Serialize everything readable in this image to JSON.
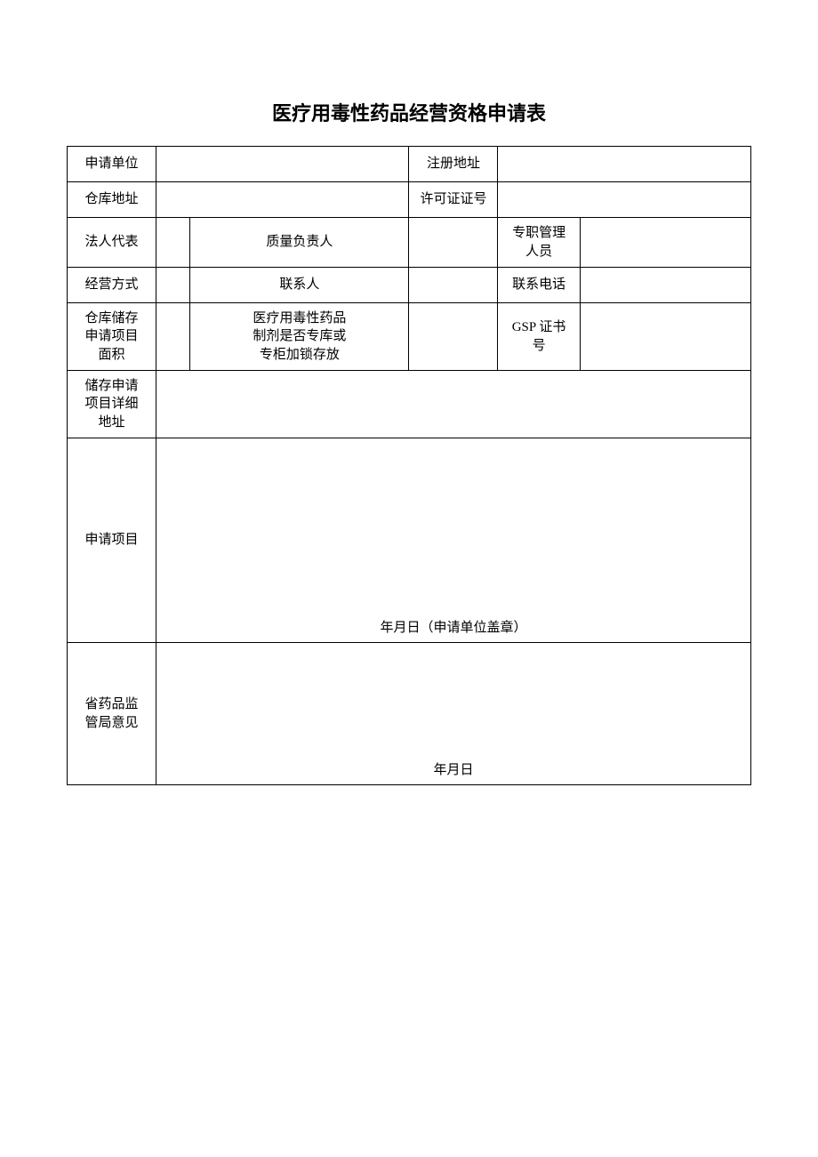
{
  "title": "医疗用毒性药品经营资格申请表",
  "labels": {
    "applicant_unit": "申请单位",
    "registered_address": "注册地址",
    "warehouse_address": "仓库地址",
    "license_no": "许可证证号",
    "legal_rep": "法人代表",
    "quality_manager": "质量负责人",
    "dedicated_manager": "专职管理\n人员",
    "business_mode": "经营方式",
    "contact_person": "联系人",
    "contact_phone": "联系电话",
    "storage_area": "仓库储存\n申请项目\n面积",
    "locked_storage": "医疗用毒性药品\n制剂是否专库或\n专柜加锁存放",
    "gsp_cert_no": "GSP 证书\n号",
    "storage_detail_address": "储存申请\n项目详细\n地址",
    "application_items": "申请项目",
    "supervision_opinion": "省药品监\n管局意见"
  },
  "footers": {
    "date_with_seal": "年月日（申请单位盖章）",
    "date_only": "年月日"
  },
  "values": {
    "applicant_unit": "",
    "registered_address": "",
    "warehouse_address": "",
    "license_no": "",
    "legal_rep": "",
    "quality_manager": "",
    "dedicated_manager": "",
    "business_mode": "",
    "contact_person": "",
    "contact_phone": "",
    "storage_area": "",
    "locked_storage": "",
    "gsp_cert_no": "",
    "storage_detail_address": "",
    "application_items": "",
    "supervision_opinion": ""
  },
  "style": {
    "page_bg": "#ffffff",
    "border_color": "#000000",
    "title_fontsize": 22,
    "cell_fontsize": 15,
    "col_widths_pct": [
      13,
      5,
      15,
      17,
      13,
      12,
      25
    ]
  }
}
